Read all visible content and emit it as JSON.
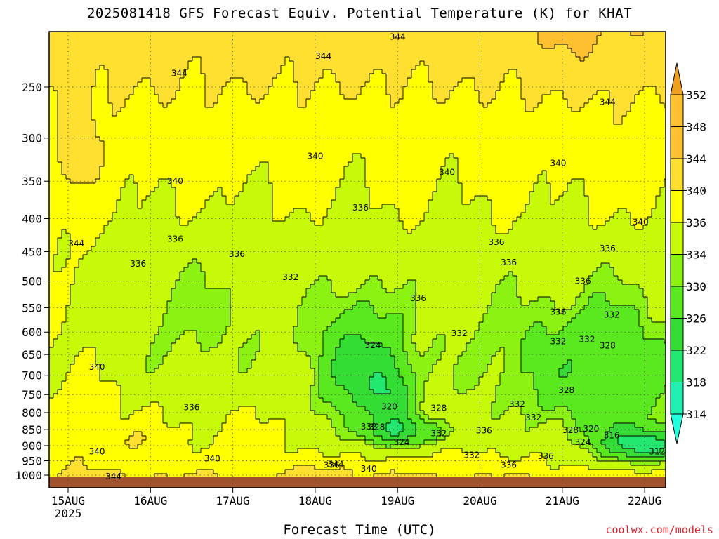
{
  "chart_data": {
    "type": "heatmap",
    "title": "2025081418 GFS Forecast Equiv. Potential Temperature (K) for KHAT",
    "xlabel": "Forecast Time (UTC)",
    "ylabel": "",
    "credit": "coolwx.com/models",
    "x_ticks": [
      "15AUG",
      "16AUG",
      "17AUG",
      "18AUG",
      "19AUG",
      "20AUG",
      "21AUG",
      "22AUG"
    ],
    "x_year": "2025",
    "y_ticks": [
      250,
      300,
      350,
      400,
      450,
      500,
      550,
      600,
      650,
      700,
      750,
      800,
      850,
      900,
      950,
      1000
    ],
    "y_scale": "log",
    "ylim": [
      1010,
      200
    ],
    "grid": true,
    "colorbar": {
      "levels": [
        314,
        318,
        322,
        326,
        330,
        334,
        336,
        340,
        344,
        348,
        352
      ],
      "colors": [
        "#22ffdd",
        "#20f0b0",
        "#22e870",
        "#33dd33",
        "#5ae81e",
        "#8cf212",
        "#c6fa08",
        "#ffff00",
        "#ffe030",
        "#ffc030",
        "#f0a020"
      ],
      "extend": "both"
    },
    "terrain_color": "#a0522d",
    "contour_labels": [
      {
        "day": 4.0,
        "p": 209,
        "text": "344"
      },
      {
        "day": 3.1,
        "p": 224,
        "text": "344"
      },
      {
        "day": 1.35,
        "p": 238,
        "text": "344"
      },
      {
        "day": 6.55,
        "p": 264,
        "text": "344"
      },
      {
        "day": 3.0,
        "p": 320,
        "text": "340"
      },
      {
        "day": 4.6,
        "p": 339,
        "text": "340"
      },
      {
        "day": 5.95,
        "p": 328,
        "text": "340"
      },
      {
        "day": 1.3,
        "p": 350,
        "text": "340"
      },
      {
        "day": 6.95,
        "p": 405,
        "text": "340"
      },
      {
        "day": 0.1,
        "p": 437,
        "text": "344"
      },
      {
        "day": 3.55,
        "p": 385,
        "text": "336"
      },
      {
        "day": 1.3,
        "p": 430,
        "text": "336"
      },
      {
        "day": 0.85,
        "p": 470,
        "text": "336"
      },
      {
        "day": 2.05,
        "p": 454,
        "text": "336"
      },
      {
        "day": 5.2,
        "p": 435,
        "text": "336"
      },
      {
        "day": 5.35,
        "p": 468,
        "text": "336"
      },
      {
        "day": 6.55,
        "p": 445,
        "text": "336"
      },
      {
        "day": 6.25,
        "p": 500,
        "text": "336"
      },
      {
        "day": 4.25,
        "p": 532,
        "text": "336"
      },
      {
        "day": 5.95,
        "p": 558,
        "text": "336"
      },
      {
        "day": 2.7,
        "p": 493,
        "text": "332"
      },
      {
        "day": 6.6,
        "p": 564,
        "text": "332"
      },
      {
        "day": 4.75,
        "p": 603,
        "text": "332"
      },
      {
        "day": 5.95,
        "p": 620,
        "text": "332"
      },
      {
        "day": 6.3,
        "p": 616,
        "text": "332"
      },
      {
        "day": 0.35,
        "p": 680,
        "text": "340"
      },
      {
        "day": 1.5,
        "p": 785,
        "text": "336"
      },
      {
        "day": 3.7,
        "p": 629,
        "text": "324"
      },
      {
        "day": 6.55,
        "p": 630,
        "text": "328"
      },
      {
        "day": 6.05,
        "p": 738,
        "text": "328"
      },
      {
        "day": 5.45,
        "p": 776,
        "text": "332"
      },
      {
        "day": 3.9,
        "p": 783,
        "text": "320"
      },
      {
        "day": 4.5,
        "p": 787,
        "text": "328"
      },
      {
        "day": 5.65,
        "p": 814,
        "text": "332"
      },
      {
        "day": 6.35,
        "p": 848,
        "text": "320"
      },
      {
        "day": 3.65,
        "p": 841,
        "text": "332"
      },
      {
        "day": 3.75,
        "p": 842,
        "text": "328"
      },
      {
        "day": 5.05,
        "p": 853,
        "text": "336"
      },
      {
        "day": 6.1,
        "p": 852,
        "text": "328"
      },
      {
        "day": 6.6,
        "p": 868,
        "text": "316"
      },
      {
        "day": 4.5,
        "p": 861,
        "text": "332"
      },
      {
        "day": 4.05,
        "p": 889,
        "text": "324"
      },
      {
        "day": 6.25,
        "p": 889,
        "text": "324"
      },
      {
        "day": 0.35,
        "p": 920,
        "text": "340"
      },
      {
        "day": 7.15,
        "p": 920,
        "text": "312"
      },
      {
        "day": 5.8,
        "p": 935,
        "text": "336"
      },
      {
        "day": 4.9,
        "p": 931,
        "text": "332"
      },
      {
        "day": 1.75,
        "p": 943,
        "text": "340"
      },
      {
        "day": 5.35,
        "p": 964,
        "text": "336"
      },
      {
        "day": 3.25,
        "p": 962,
        "text": "344"
      },
      {
        "day": 3.2,
        "p": 964,
        "text": "336"
      },
      {
        "day": 3.65,
        "p": 978,
        "text": "340"
      },
      {
        "day": 0.55,
        "p": 1005,
        "text": "344"
      }
    ]
  }
}
